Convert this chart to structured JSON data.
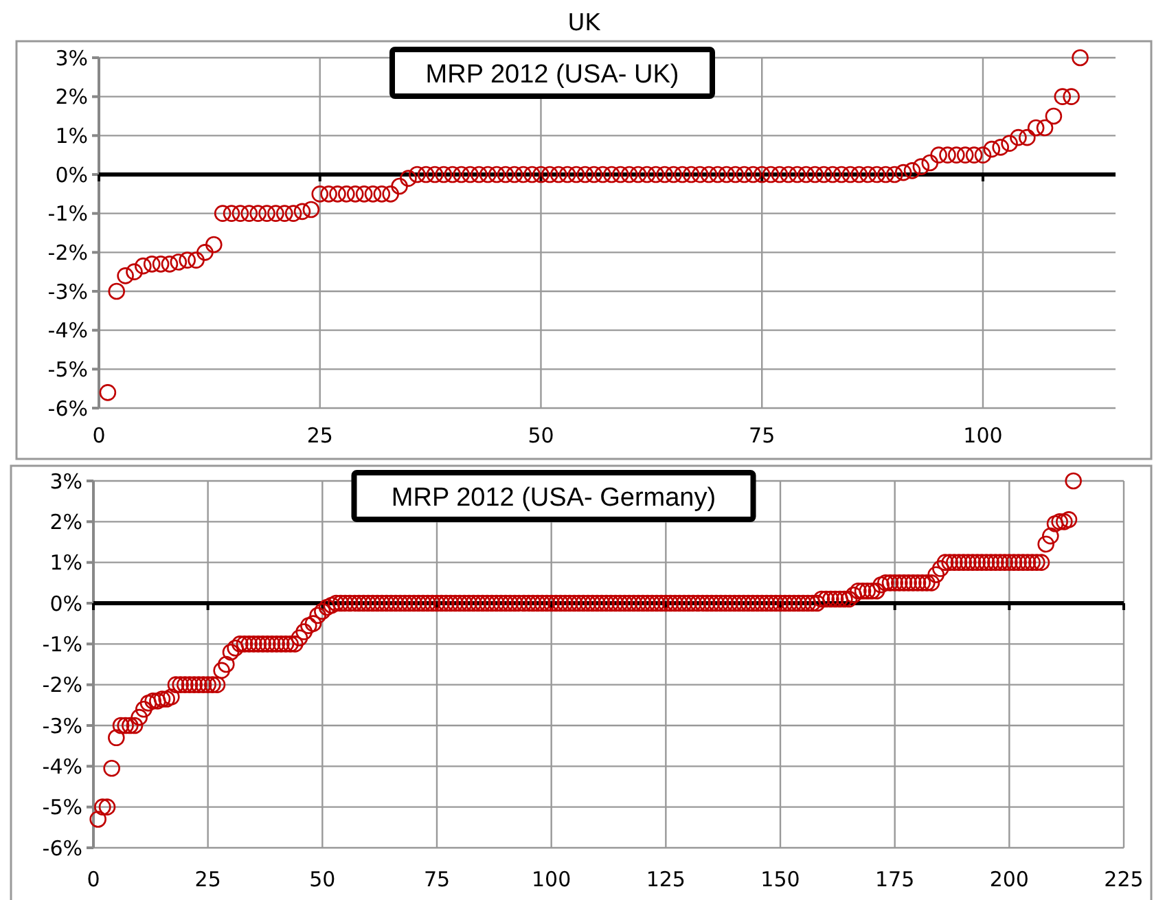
{
  "chart_data": [
    {
      "type": "scatter",
      "title": "MRP 2012 (USA- UK)",
      "annotations": [
        "UK"
      ],
      "marker": "circle",
      "grid": true,
      "xlim": [
        0,
        115
      ],
      "xticks": [
        0,
        25,
        50,
        75,
        100
      ],
      "ylim": [
        -6,
        3
      ],
      "yticks": [
        {
          "value": -6,
          "label": "-6%"
        },
        {
          "value": -5,
          "label": "-5%"
        },
        {
          "value": -4,
          "label": "-4%"
        },
        {
          "value": -3,
          "label": "-3%"
        },
        {
          "value": -2,
          "label": "-2%"
        },
        {
          "value": -1,
          "label": "-1%"
        },
        {
          "value": 0,
          "label": "0%"
        },
        {
          "value": 1,
          "label": "1%"
        },
        {
          "value": 2,
          "label": "2%"
        },
        {
          "value": 3,
          "label": "3%"
        }
      ],
      "series": [
        {
          "color": "#c00000",
          "x": [
            1,
            2,
            3,
            4,
            5,
            6,
            7,
            8,
            9,
            10,
            11,
            12,
            13,
            14,
            15,
            16,
            17,
            18,
            19,
            20,
            21,
            22,
            23,
            24,
            25,
            26,
            27,
            28,
            29,
            30,
            31,
            32,
            33,
            34,
            35,
            36,
            37,
            38,
            39,
            40,
            41,
            42,
            43,
            44,
            45,
            46,
            47,
            48,
            49,
            50,
            51,
            52,
            53,
            54,
            55,
            56,
            57,
            58,
            59,
            60,
            61,
            62,
            63,
            64,
            65,
            66,
            67,
            68,
            69,
            70,
            71,
            72,
            73,
            74,
            75,
            76,
            77,
            78,
            79,
            80,
            81,
            82,
            83,
            84,
            85,
            86,
            87,
            88,
            89,
            90,
            91,
            92,
            93,
            94,
            95,
            96,
            97,
            98,
            99,
            100,
            101,
            102,
            103,
            104,
            105,
            106,
            107,
            108,
            109,
            110,
            111
          ],
          "values": [
            -5.6,
            -3.0,
            -2.6,
            -2.5,
            -2.35,
            -2.3,
            -2.3,
            -2.3,
            -2.25,
            -2.2,
            -2.2,
            -2.0,
            -1.8,
            -1.0,
            -1.0,
            -1.0,
            -1.0,
            -1.0,
            -1.0,
            -1.0,
            -1.0,
            -1.0,
            -0.95,
            -0.9,
            -0.5,
            -0.5,
            -0.5,
            -0.5,
            -0.5,
            -0.5,
            -0.5,
            -0.5,
            -0.5,
            -0.3,
            -0.1,
            0,
            0,
            0,
            0,
            0,
            0,
            0,
            0,
            0,
            0,
            0,
            0,
            0,
            0,
            0,
            0,
            0,
            0,
            0,
            0,
            0,
            0,
            0,
            0,
            0,
            0,
            0,
            0,
            0,
            0,
            0,
            0,
            0,
            0,
            0,
            0,
            0,
            0,
            0,
            0,
            0,
            0,
            0,
            0,
            0,
            0,
            0,
            0,
            0,
            0,
            0,
            0,
            0,
            0,
            0,
            0.05,
            0.1,
            0.2,
            0.3,
            0.5,
            0.5,
            0.5,
            0.5,
            0.5,
            0.5,
            0.65,
            0.7,
            0.8,
            0.95,
            0.95,
            1.2,
            1.2,
            1.5,
            2.0,
            2.0,
            3.0
          ]
        }
      ]
    },
    {
      "type": "scatter",
      "title": "MRP 2012 (USA- Germany)",
      "marker": "circle",
      "grid": true,
      "xlim": [
        0,
        225
      ],
      "xticks": [
        0,
        25,
        50,
        75,
        100,
        125,
        150,
        175,
        200,
        225
      ],
      "ylim": [
        -6,
        3
      ],
      "yticks": [
        {
          "value": -6,
          "label": "-6%"
        },
        {
          "value": -5,
          "label": "-5%"
        },
        {
          "value": -4,
          "label": "-4%"
        },
        {
          "value": -3,
          "label": "-3%"
        },
        {
          "value": -2,
          "label": "-2%"
        },
        {
          "value": -1,
          "label": "-1%"
        },
        {
          "value": 0,
          "label": "0%"
        },
        {
          "value": 1,
          "label": "1%"
        },
        {
          "value": 2,
          "label": "2%"
        },
        {
          "value": 3,
          "label": "3%"
        }
      ],
      "series": [
        {
          "color": "#c00000",
          "x": [
            1,
            2,
            3,
            4,
            5,
            6,
            7,
            8,
            9,
            10,
            11,
            12,
            13,
            14,
            15,
            16,
            17,
            18,
            19,
            20,
            21,
            22,
            23,
            24,
            25,
            26,
            27,
            28,
            29,
            30,
            31,
            32,
            33,
            34,
            35,
            36,
            37,
            38,
            39,
            40,
            41,
            42,
            43,
            44,
            45,
            46,
            47,
            48,
            49,
            50,
            51,
            52,
            53,
            54,
            55,
            56,
            57,
            58,
            59,
            60,
            61,
            62,
            63,
            64,
            65,
            66,
            67,
            68,
            69,
            70,
            71,
            72,
            73,
            74,
            75,
            76,
            77,
            78,
            79,
            80,
            81,
            82,
            83,
            84,
            85,
            86,
            87,
            88,
            89,
            90,
            91,
            92,
            93,
            94,
            95,
            96,
            97,
            98,
            99,
            100,
            101,
            102,
            103,
            104,
            105,
            106,
            107,
            108,
            109,
            110,
            111,
            112,
            113,
            114,
            115,
            116,
            117,
            118,
            119,
            120,
            121,
            122,
            123,
            124,
            125,
            126,
            127,
            128,
            129,
            130,
            131,
            132,
            133,
            134,
            135,
            136,
            137,
            138,
            139,
            140,
            141,
            142,
            143,
            144,
            145,
            146,
            147,
            148,
            149,
            150,
            151,
            152,
            153,
            154,
            155,
            156,
            157,
            158,
            159,
            160,
            161,
            162,
            163,
            164,
            165,
            166,
            167,
            168,
            169,
            170,
            171,
            172,
            173,
            174,
            175,
            176,
            177,
            178,
            179,
            180,
            181,
            182,
            183,
            184,
            185,
            186,
            187,
            188,
            189,
            190,
            191,
            192,
            193,
            194,
            195,
            196,
            197,
            198,
            199,
            200,
            201,
            202,
            203,
            204,
            205,
            206,
            207,
            208,
            209,
            210,
            211,
            212,
            213,
            214
          ],
          "values": [
            -5.3,
            -5.0,
            -5.0,
            -4.05,
            -3.3,
            -3.0,
            -3.0,
            -3.0,
            -3.0,
            -2.8,
            -2.6,
            -2.45,
            -2.4,
            -2.4,
            -2.35,
            -2.35,
            -2.3,
            -2.0,
            -2.0,
            -2.0,
            -2.0,
            -2.0,
            -2.0,
            -2.0,
            -2.0,
            -2.0,
            -2.0,
            -1.65,
            -1.5,
            -1.2,
            -1.1,
            -1.0,
            -1.0,
            -1.0,
            -1.0,
            -1.0,
            -1.0,
            -1.0,
            -1.0,
            -1.0,
            -1.0,
            -1.0,
            -1.0,
            -1.0,
            -0.85,
            -0.7,
            -0.55,
            -0.5,
            -0.3,
            -0.2,
            -0.1,
            -0.05,
            0,
            0,
            0,
            0,
            0,
            0,
            0,
            0,
            0,
            0,
            0,
            0,
            0,
            0,
            0,
            0,
            0,
            0,
            0,
            0,
            0,
            0,
            0,
            0,
            0,
            0,
            0,
            0,
            0,
            0,
            0,
            0,
            0,
            0,
            0,
            0,
            0,
            0,
            0,
            0,
            0,
            0,
            0,
            0,
            0,
            0,
            0,
            0,
            0,
            0,
            0,
            0,
            0,
            0,
            0,
            0,
            0,
            0,
            0,
            0,
            0,
            0,
            0,
            0,
            0,
            0,
            0,
            0,
            0,
            0,
            0,
            0,
            0,
            0,
            0,
            0,
            0,
            0,
            0,
            0,
            0,
            0,
            0,
            0,
            0,
            0,
            0,
            0,
            0,
            0,
            0,
            0,
            0,
            0,
            0,
            0,
            0,
            0,
            0,
            0,
            0,
            0,
            0,
            0,
            0,
            0,
            0.1,
            0.1,
            0.1,
            0.1,
            0.1,
            0.1,
            0.1,
            0.2,
            0.3,
            0.3,
            0.3,
            0.3,
            0.3,
            0.45,
            0.5,
            0.5,
            0.5,
            0.5,
            0.5,
            0.5,
            0.5,
            0.5,
            0.5,
            0.5,
            0.5,
            0.7,
            0.85,
            1.0,
            1.0,
            1.0,
            1.0,
            1.0,
            1.0,
            1.0,
            1.0,
            1.0,
            1.0,
            1.0,
            1.0,
            1.0,
            1.0,
            1.0,
            1.0,
            1.0,
            1.0,
            1.0,
            1.0,
            1.0,
            1.0,
            1.45,
            1.65,
            1.95,
            2.0,
            2.0,
            2.05,
            3.0
          ]
        }
      ]
    }
  ]
}
